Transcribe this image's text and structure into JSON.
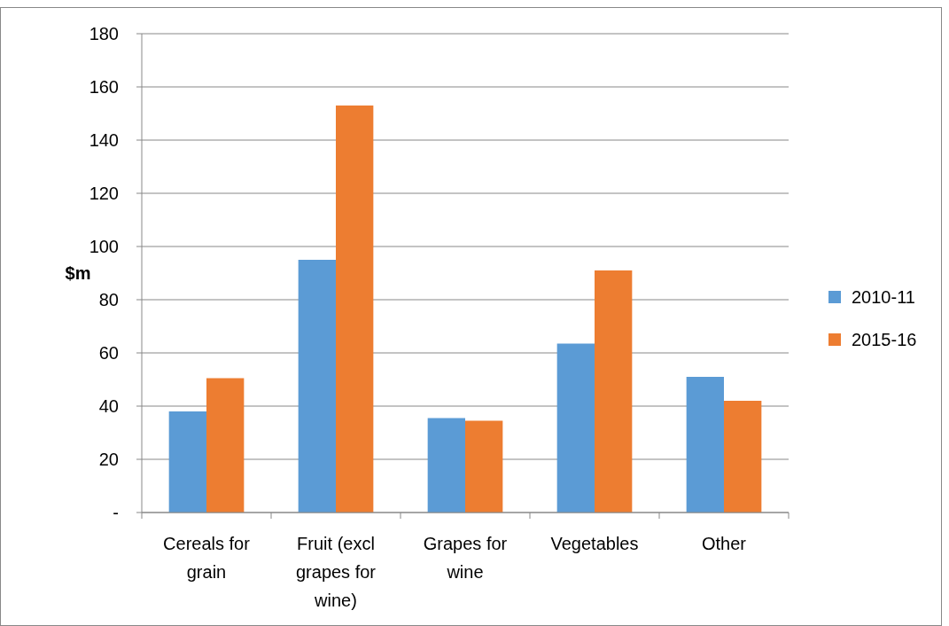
{
  "chart_data": {
    "type": "bar",
    "ylabel": "$m",
    "categories": [
      "Cereals for grain",
      "Fruit (excl grapes for wine)",
      "Grapes for wine",
      "Vegetables",
      "Other"
    ],
    "series": [
      {
        "name": "2010-11",
        "color": "#5b9bd5",
        "values": [
          38,
          95,
          35.5,
          63.5,
          51
        ]
      },
      {
        "name": "2015-16",
        "color": "#ed7d31",
        "values": [
          50.5,
          153,
          34.5,
          91,
          42
        ]
      }
    ],
    "ylim": [
      0,
      180
    ],
    "yticks": [
      {
        "value": 0,
        "label": "-"
      },
      20,
      40,
      60,
      80,
      100,
      120,
      140,
      160,
      180
    ],
    "grid": "y",
    "legend": "right"
  }
}
